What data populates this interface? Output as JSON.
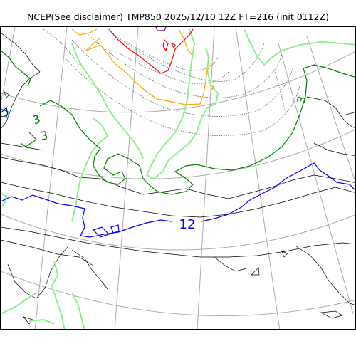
{
  "title": "NCEP(See disclaimer) TMP850 2025/12/10 12Z FT=216 (init 0112Z)",
  "contour_labels": {
    "twelve": "12",
    "three_east": "3",
    "three_west_a": "3",
    "three_west_b": "3"
  },
  "colors": {
    "coast": "#000000",
    "graticule": "#aaaaaa",
    "isobar_dotted": "#555555",
    "zero_line": "#90ee90",
    "three_line": "#008000",
    "twelve_line": "#0000ff",
    "minus_line": "#ffa500",
    "cold_line": "#ff0000",
    "coldest_line": "#800080"
  }
}
